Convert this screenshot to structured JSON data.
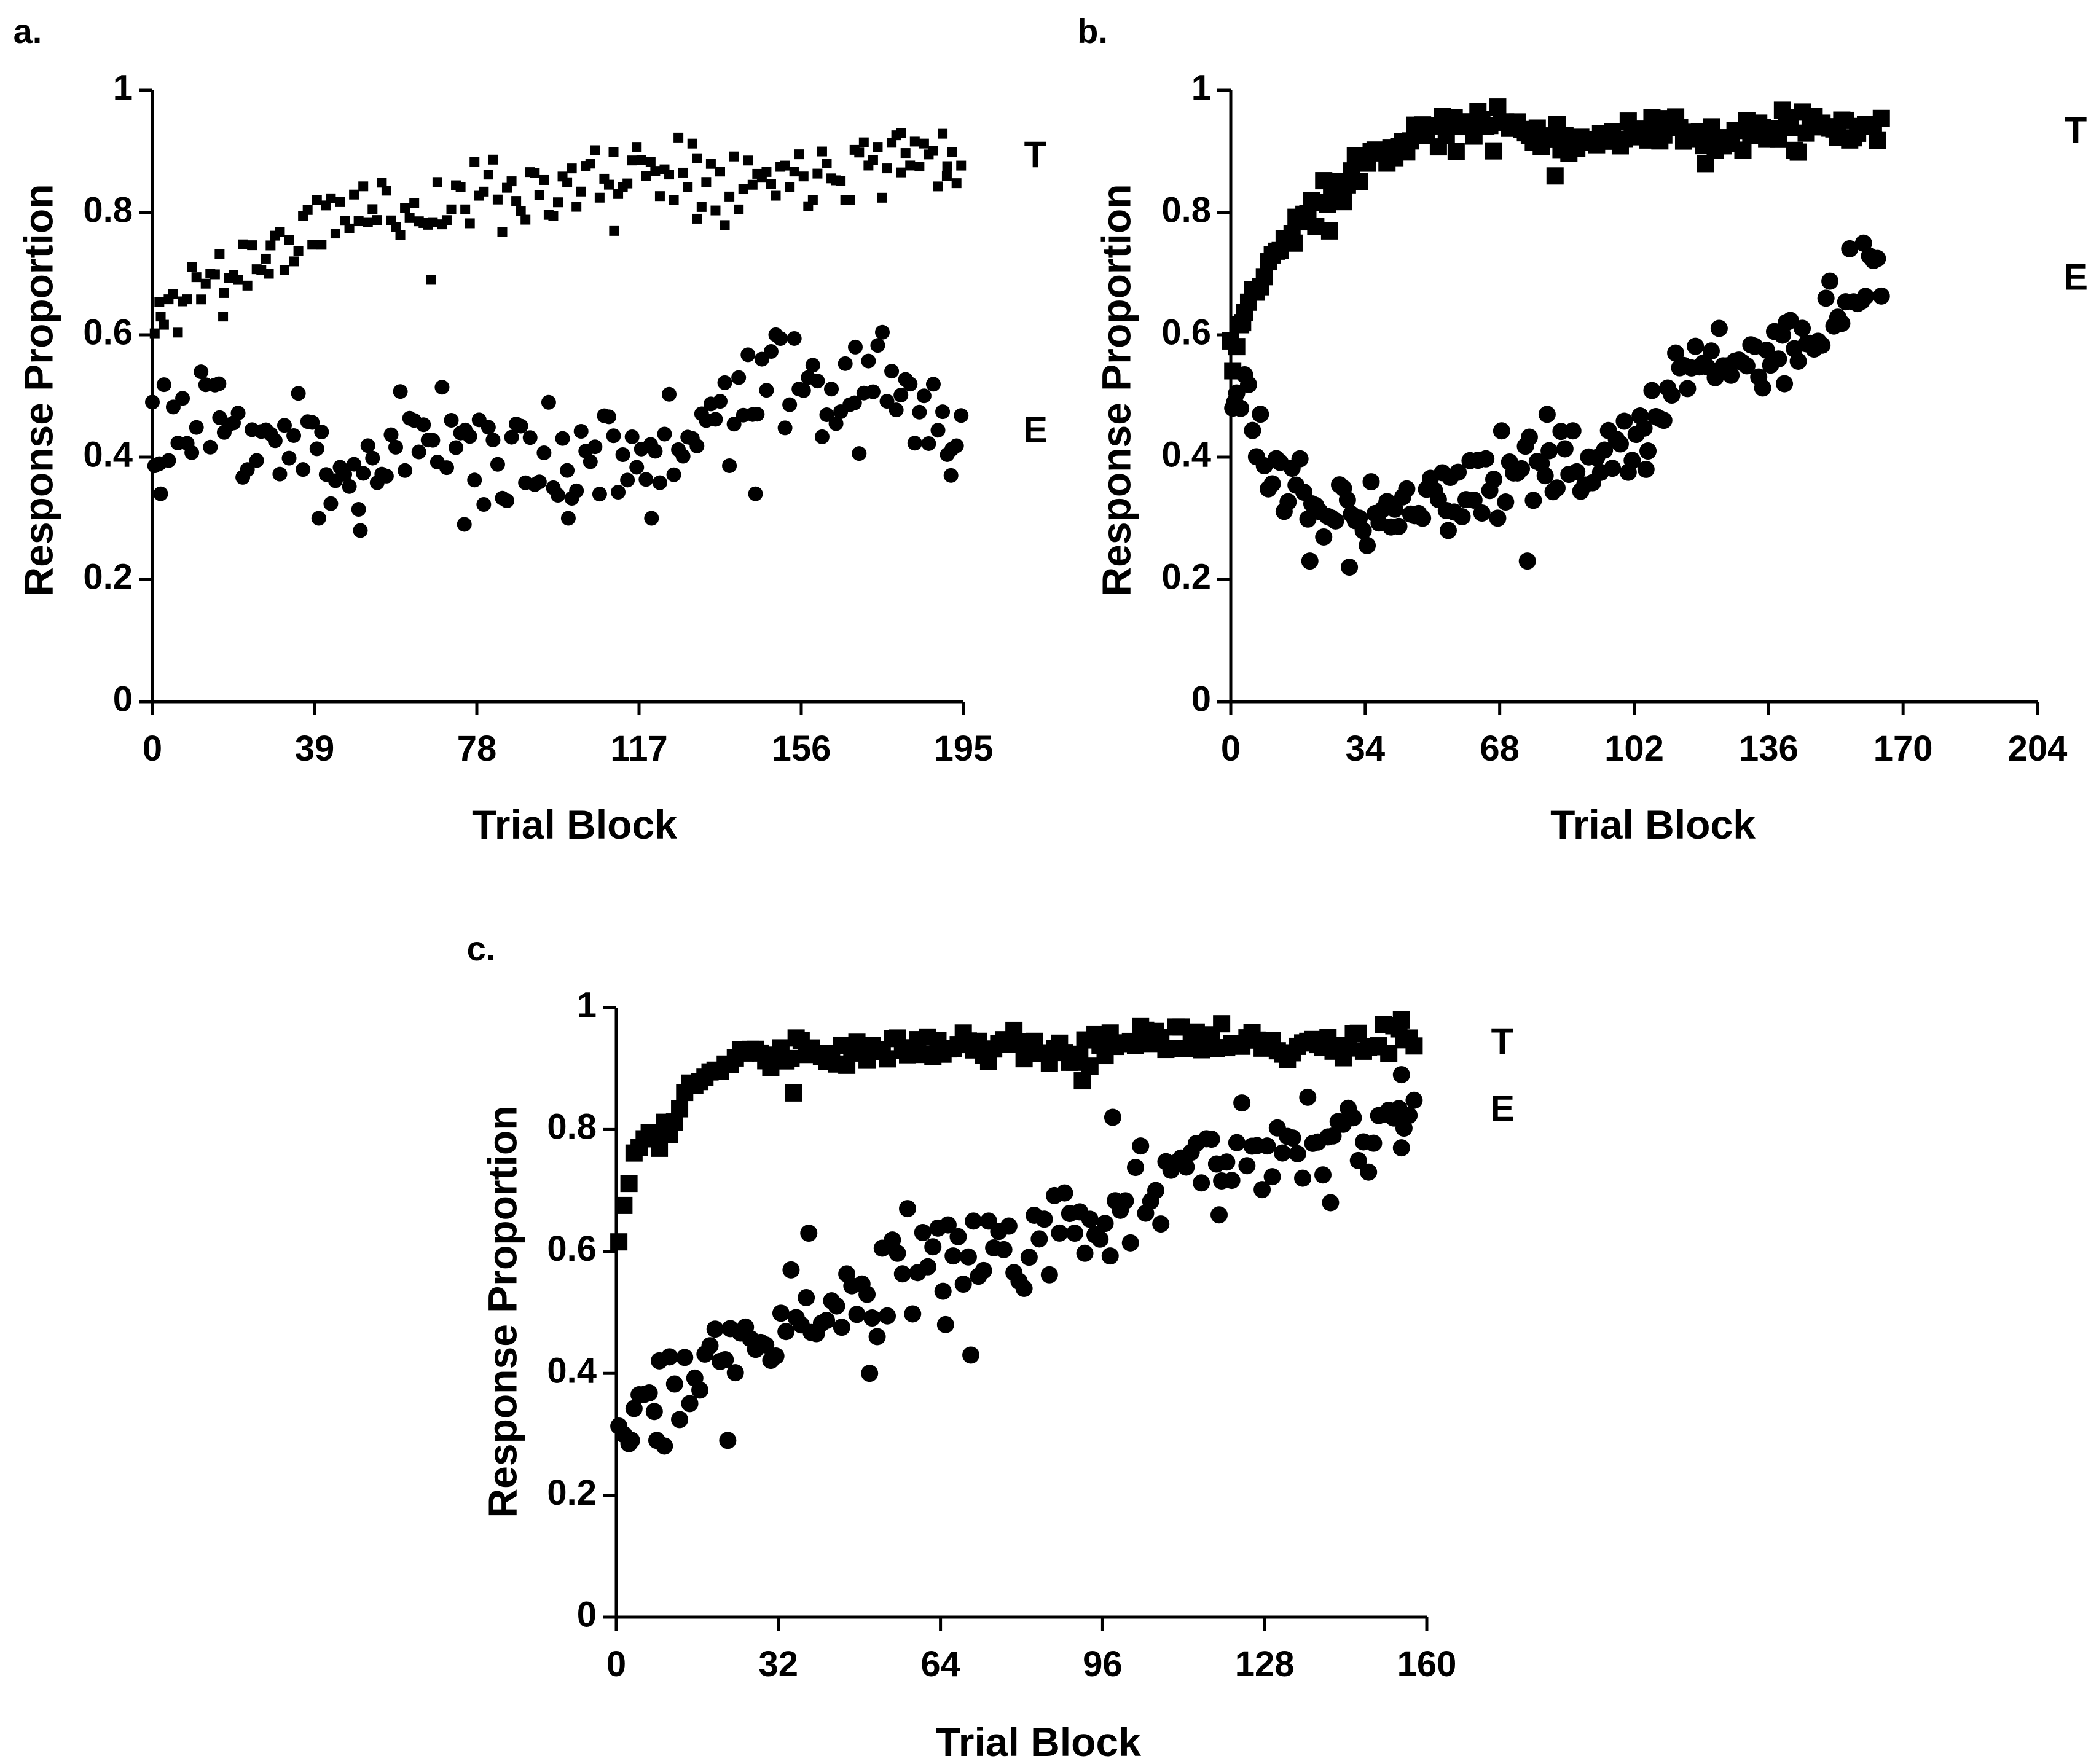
{
  "chart_data": [
    {
      "panel": "a.",
      "type": "scatter",
      "xlabel": "Trial Block",
      "ylabel": "Response Proportion",
      "xlim": [
        0,
        195
      ],
      "ylim": [
        0,
        1
      ],
      "x_ticks": [
        "0",
        "39",
        "78",
        "117",
        "156",
        "195"
      ],
      "y_ticks": [
        "0",
        "0.2",
        "0.4",
        "0.6",
        "0.8",
        "1"
      ],
      "series": [
        {
          "name": "T",
          "marker": "square",
          "size": "small",
          "label_value": 0.89,
          "anchors": [
            [
              0,
              0.56
            ],
            [
              1,
              0.62
            ],
            [
              5,
              0.65
            ],
            [
              10,
              0.68
            ],
            [
              20,
              0.71
            ],
            [
              30,
              0.74
            ],
            [
              39,
              0.77
            ],
            [
              45,
              0.8
            ],
            [
              55,
              0.81
            ],
            [
              65,
              0.8
            ],
            [
              78,
              0.83
            ],
            [
              90,
              0.84
            ],
            [
              100,
              0.84
            ],
            [
              110,
              0.86
            ],
            [
              117,
              0.87
            ],
            [
              125,
              0.88
            ],
            [
              135,
              0.87
            ],
            [
              145,
              0.85
            ],
            [
              156,
              0.87
            ],
            [
              165,
              0.88
            ],
            [
              175,
              0.89
            ],
            [
              185,
              0.89
            ],
            [
              195,
              0.9
            ]
          ],
          "count": 175,
          "noise": 0.03,
          "seed": 11,
          "outliers": [
            [
              2,
              0.63
            ],
            [
              17,
              0.63
            ],
            [
              28,
              0.7
            ],
            [
              67,
              0.69
            ],
            [
              111,
              0.77
            ],
            [
              131,
              0.79
            ],
            [
              180,
              0.93
            ],
            [
              191,
              0.86
            ]
          ]
        },
        {
          "name": "E",
          "marker": "circle",
          "size": "normal",
          "label_value": 0.44,
          "anchors": [
            [
              0,
              0.45
            ],
            [
              10,
              0.44
            ],
            [
              20,
              0.44
            ],
            [
              30,
              0.43
            ],
            [
              39,
              0.41
            ],
            [
              50,
              0.38
            ],
            [
              60,
              0.42
            ],
            [
              70,
              0.46
            ],
            [
              78,
              0.41
            ],
            [
              90,
              0.39
            ],
            [
              100,
              0.4
            ],
            [
              110,
              0.43
            ],
            [
              117,
              0.41
            ],
            [
              125,
              0.4
            ],
            [
              135,
              0.46
            ],
            [
              145,
              0.52
            ],
            [
              156,
              0.5
            ],
            [
              165,
              0.5
            ],
            [
              175,
              0.52
            ],
            [
              185,
              0.5
            ],
            [
              195,
              0.44
            ]
          ],
          "count": 175,
          "noise": 0.045,
          "seed": 23,
          "outliers": [
            [
              0,
              0.49
            ],
            [
              2,
              0.34
            ],
            [
              16,
              0.52
            ],
            [
              40,
              0.3
            ],
            [
              50,
              0.28
            ],
            [
              75,
              0.29
            ],
            [
              100,
              0.3
            ],
            [
              120,
              0.3
            ],
            [
              145,
              0.34
            ],
            [
              169,
              0.58
            ],
            [
              192,
              0.37
            ]
          ]
        }
      ]
    },
    {
      "panel": "b.",
      "type": "scatter",
      "xlabel": "Trial Block",
      "ylabel": "Response Proportion",
      "xlim": [
        0,
        204
      ],
      "ylim": [
        0,
        1
      ],
      "x_ticks": [
        "0",
        "34",
        "68",
        "102",
        "136",
        "170",
        "204"
      ],
      "y_ticks": [
        "0",
        "0.2",
        "0.4",
        "0.6",
        "0.8",
        "1"
      ],
      "series": [
        {
          "name": "T",
          "marker": "square",
          "size": "large",
          "label_value": 0.93,
          "anchors": [
            [
              0,
              0.52
            ],
            [
              2,
              0.6
            ],
            [
              5,
              0.65
            ],
            [
              10,
              0.72
            ],
            [
              15,
              0.77
            ],
            [
              20,
              0.8
            ],
            [
              25,
              0.83
            ],
            [
              34,
              0.89
            ],
            [
              42,
              0.92
            ],
            [
              50,
              0.93
            ],
            [
              60,
              0.94
            ],
            [
              68,
              0.94
            ],
            [
              80,
              0.93
            ],
            [
              90,
              0.92
            ],
            [
              102,
              0.93
            ],
            [
              110,
              0.93
            ],
            [
              120,
              0.91
            ],
            [
              130,
              0.93
            ],
            [
              136,
              0.93
            ],
            [
              145,
              0.94
            ],
            [
              155,
              0.93
            ],
            [
              165,
              0.93
            ]
          ],
          "count": 165,
          "noise": 0.015,
          "seed": 37,
          "outliers": [
            [
              0,
              0.59
            ],
            [
              3,
              0.62
            ],
            [
              16,
              0.75
            ],
            [
              25,
              0.77
            ],
            [
              57,
              0.9
            ],
            [
              82,
              0.86
            ],
            [
              120,
              0.88
            ]
          ]
        },
        {
          "name": "E",
          "marker": "circle",
          "size": "large",
          "label_value": 0.69,
          "anchors": [
            [
              0,
              0.52
            ],
            [
              3,
              0.48
            ],
            [
              8,
              0.4
            ],
            [
              15,
              0.34
            ],
            [
              20,
              0.32
            ],
            [
              34,
              0.32
            ],
            [
              45,
              0.33
            ],
            [
              55,
              0.34
            ],
            [
              68,
              0.38
            ],
            [
              78,
              0.4
            ],
            [
              90,
              0.38
            ],
            [
              102,
              0.42
            ],
            [
              110,
              0.5
            ],
            [
              118,
              0.55
            ],
            [
              125,
              0.56
            ],
            [
              136,
              0.56
            ],
            [
              145,
              0.6
            ],
            [
              150,
              0.63
            ],
            [
              155,
              0.66
            ],
            [
              160,
              0.68
            ],
            [
              165,
              0.66
            ]
          ],
          "count": 165,
          "noise": 0.03,
          "seed": 53,
          "outliers": [
            [
              1,
              0.49
            ],
            [
              20,
              0.23
            ],
            [
              30,
              0.22
            ],
            [
              55,
              0.28
            ],
            [
              75,
              0.23
            ],
            [
              80,
              0.47
            ],
            [
              105,
              0.38
            ],
            [
              140,
              0.52
            ],
            [
              160,
              0.75
            ]
          ]
        }
      ]
    },
    {
      "panel": "c.",
      "type": "scatter",
      "xlabel": "Trial Block",
      "ylabel": "Response Proportion",
      "xlim": [
        0,
        160
      ],
      "ylim": [
        0,
        1
      ],
      "x_ticks": [
        "0",
        "32",
        "64",
        "96",
        "128",
        "160"
      ],
      "y_ticks": [
        "0",
        "0.2",
        "0.4",
        "0.6",
        "0.8",
        "1"
      ],
      "series": [
        {
          "name": "T",
          "marker": "square",
          "size": "large",
          "label_value": 0.94,
          "anchors": [
            [
              0,
              0.57
            ],
            [
              1,
              0.66
            ],
            [
              3,
              0.74
            ],
            [
              6,
              0.78
            ],
            [
              10,
              0.81
            ],
            [
              15,
              0.87
            ],
            [
              20,
              0.91
            ],
            [
              25,
              0.92
            ],
            [
              32,
              0.92
            ],
            [
              40,
              0.92
            ],
            [
              50,
              0.93
            ],
            [
              64,
              0.93
            ],
            [
              80,
              0.94
            ],
            [
              90,
              0.92
            ],
            [
              96,
              0.93
            ],
            [
              110,
              0.95
            ],
            [
              120,
              0.95
            ],
            [
              128,
              0.94
            ],
            [
              140,
              0.93
            ],
            [
              150,
              0.94
            ],
            [
              158,
              0.95
            ]
          ],
          "count": 158,
          "noise": 0.013,
          "seed": 71,
          "outliers": [
            [
              35,
              0.86
            ],
            [
              92,
              0.88
            ],
            [
              155,
              0.98
            ]
          ]
        },
        {
          "name": "E",
          "marker": "circle",
          "size": "large",
          "label_value": 0.83,
          "anchors": [
            [
              0,
              0.3
            ],
            [
              5,
              0.34
            ],
            [
              10,
              0.37
            ],
            [
              20,
              0.42
            ],
            [
              32,
              0.47
            ],
            [
              45,
              0.53
            ],
            [
              55,
              0.56
            ],
            [
              64,
              0.58
            ],
            [
              75,
              0.6
            ],
            [
              85,
              0.62
            ],
            [
              96,
              0.64
            ],
            [
              105,
              0.69
            ],
            [
              115,
              0.73
            ],
            [
              128,
              0.78
            ],
            [
              140,
              0.81
            ],
            [
              150,
              0.82
            ],
            [
              158,
              0.85
            ]
          ],
          "count": 158,
          "noise": 0.04,
          "seed": 97,
          "outliers": [
            [
              3,
              0.29
            ],
            [
              8,
              0.29
            ],
            [
              22,
              0.29
            ],
            [
              38,
              0.63
            ],
            [
              50,
              0.4
            ],
            [
              65,
              0.48
            ],
            [
              70,
              0.43
            ],
            [
              98,
              0.82
            ],
            [
              119,
              0.66
            ],
            [
              141,
              0.68
            ],
            [
              155,
              0.77
            ],
            [
              155,
              0.89
            ]
          ]
        }
      ]
    }
  ]
}
